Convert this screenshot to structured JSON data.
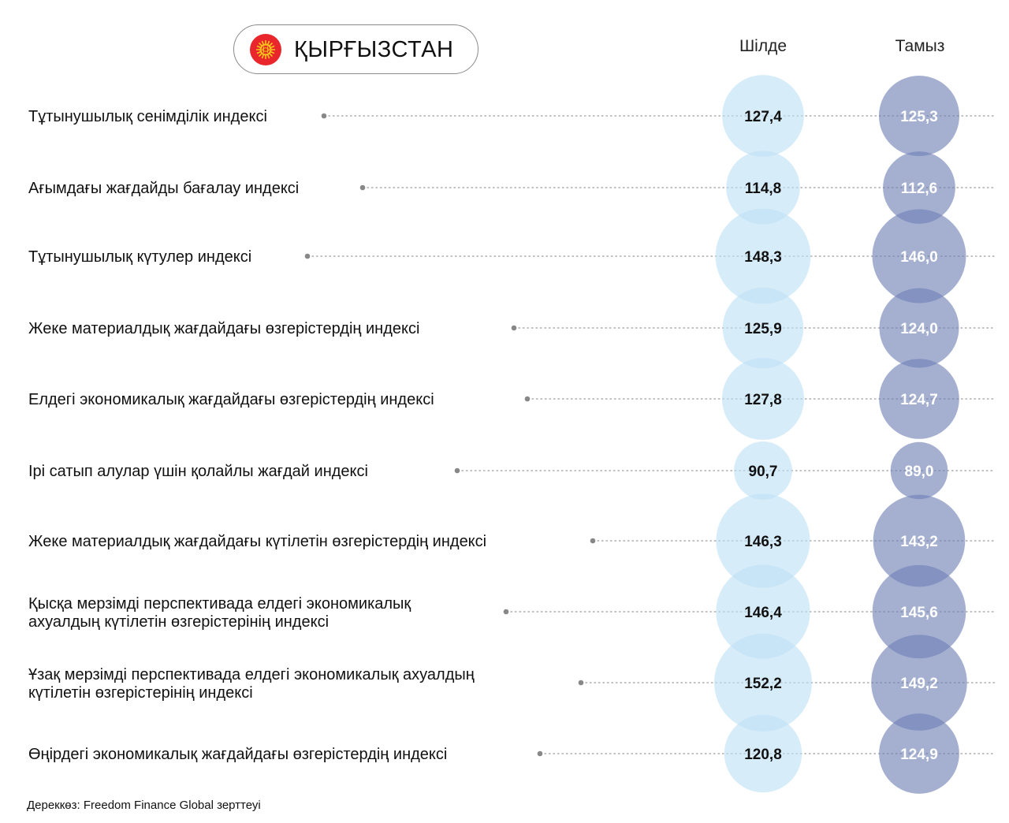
{
  "header": {
    "country": "ҚЫРҒЫЗСТАН",
    "column_1": "Шілде",
    "column_2": "Тамыз"
  },
  "colors": {
    "july_bubble": "#bfe0f5",
    "august_bubble": "#6e7fb5",
    "july_text": "#111111",
    "august_text": "#ffffff",
    "dotted_line": "#9a9a9a",
    "flag_red": "#e8262b",
    "flag_sun": "#f5c518"
  },
  "chart_data": {
    "type": "bubble-table",
    "series": [
      {
        "name": "Шілде",
        "values": [
          127.4,
          114.8,
          148.3,
          125.9,
          127.8,
          90.7,
          146.3,
          146.4,
          152.2,
          120.8
        ]
      },
      {
        "name": "Тамыз",
        "values": [
          125.3,
          112.6,
          146.0,
          124.0,
          124.7,
          89.0,
          143.2,
          145.6,
          149.2,
          124.9
        ]
      }
    ],
    "rows": [
      {
        "label_lines": [
          "Тұтынушылық сенімділік индексі"
        ],
        "july": "127,4",
        "august": "125,3"
      },
      {
        "label_lines": [
          "Ағымдағы жағдайды бағалау индексі"
        ],
        "july": "114,8",
        "august": "112,6"
      },
      {
        "label_lines": [
          "Тұтынушылық күтулер индексі"
        ],
        "july": "148,3",
        "august": "146,0"
      },
      {
        "label_lines": [
          "Жеке материалдық жағдайдағы өзгерістердің индексі"
        ],
        "july": "125,9",
        "august": "124,0"
      },
      {
        "label_lines": [
          "Елдегі экономикалық жағдайдағы өзгерістердің индексі"
        ],
        "july": "127,8",
        "august": "124,7"
      },
      {
        "label_lines": [
          "Ірі сатып алулар үшін қолайлы жағдай индексі"
        ],
        "july": "90,7",
        "august": "89,0"
      },
      {
        "label_lines": [
          "Жеке материалдық жағдайдағы күтілетін өзгерістердің индексі"
        ],
        "july": "146,3",
        "august": "143,2"
      },
      {
        "label_lines": [
          "Қысқа мерзімді перспективада елдегі экономикалық",
          "ахуалдың күтілетін өзгерістерінің индексі"
        ],
        "july": "146,4",
        "august": "145,6"
      },
      {
        "label_lines": [
          "Ұзақ мерзімді перспективада елдегі экономикалық ахуалдың",
          "күтілетін өзгерістерінің индексі"
        ],
        "july": "152,2",
        "august": "149,2"
      },
      {
        "label_lines": [
          "Өңірдегі экономикалық жағдайдағы өзгерістердің индексі"
        ],
        "july": "120,8",
        "august": "124,9"
      }
    ]
  },
  "source": "Дереккөз: Freedom Finance Global зерттеуі"
}
